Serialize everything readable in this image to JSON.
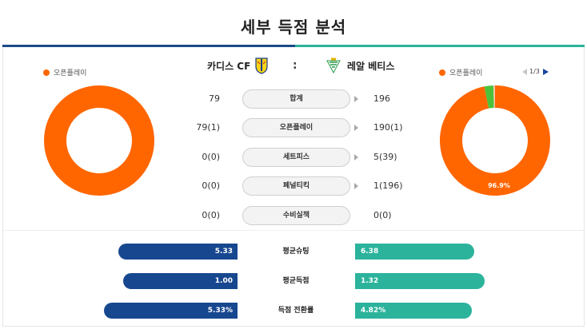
{
  "header": {
    "title": "세부 득점 분석"
  },
  "colors": {
    "home_accent": "#1a4a8a",
    "away_accent": "#2bb39c",
    "open_play": "#ff6600",
    "away_set_piece": "#4cc23a",
    "bar_home": "#17478f",
    "bar_away": "#2bb39c"
  },
  "legend": {
    "home_label": "오픈플레이",
    "away_label": "오픈플레이"
  },
  "teams": {
    "home": {
      "name": "카디스 CF",
      "crest_icon": "cadiz-crest-icon"
    },
    "separator": ":",
    "away": {
      "name": "레알 베티스",
      "crest_icon": "betis-crest-icon"
    }
  },
  "pager": {
    "text": "1/3"
  },
  "home_donut": {
    "slices": [
      {
        "label": "오픈플레이",
        "value": 100
      }
    ]
  },
  "away_donut": {
    "slices": [
      {
        "label": "오픈플레이",
        "value": 96.9
      },
      {
        "label": "세트피스",
        "value": 2.6
      },
      {
        "label": "페널티킥",
        "value": 0.5
      }
    ],
    "label": "96.9%"
  },
  "stats": [
    {
      "label": "합계",
      "home": "79",
      "away": "196"
    },
    {
      "label": "오픈플레이",
      "home": "79(1)",
      "away": "190(1)"
    },
    {
      "label": "세트피스",
      "home": "0(0)",
      "away": "5(39)"
    },
    {
      "label": "페널티킥",
      "home": "0(0)",
      "away": "1(196)"
    },
    {
      "label": "수비실책",
      "home": "0(0)",
      "away": "0(0)"
    }
  ],
  "comparisons": [
    {
      "label": "평균슈팅",
      "home": "5.33",
      "away": "6.38",
      "home_fill": 0.55,
      "away_fill": 0.55
    },
    {
      "label": "평균득점",
      "home": "1.00",
      "away": "1.32",
      "home_fill": 0.53,
      "away_fill": 0.6
    },
    {
      "label": "득점 전환률",
      "home": "5.33%",
      "away": "4.82%",
      "home_fill": 0.62,
      "away_fill": 0.54
    }
  ]
}
